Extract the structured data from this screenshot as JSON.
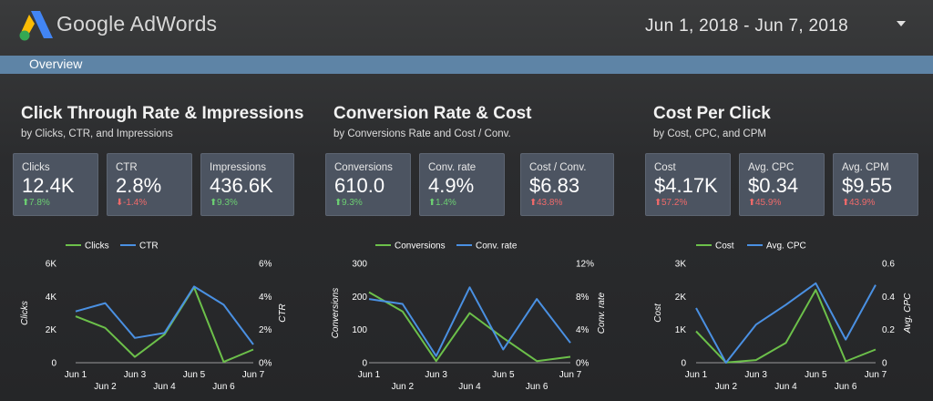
{
  "header": {
    "brand": "Google AdWords",
    "date_range": "Jun 1, 2018 - Jun 7, 2018",
    "colors": {
      "logo_blue": "#4285f4",
      "logo_yellow": "#fbbc05",
      "logo_green": "#34a853"
    }
  },
  "nav": {
    "tab": "Overview",
    "bar_color": "#5e84a6"
  },
  "sections": [
    {
      "title": "Click Through Rate & Impressions",
      "subtitle": "by Clicks, CTR, and Impressions",
      "cards": [
        {
          "label": "Clicks",
          "value": "12.4K",
          "arrow": "⬆",
          "change": "7.8%",
          "trend": "up-g"
        },
        {
          "label": "CTR",
          "value": "2.8%",
          "arrow": "⬇",
          "change": "-1.4%",
          "trend": "dn-r"
        },
        {
          "label": "Impressions",
          "value": "436.6K",
          "arrow": "⬆",
          "change": "9.3%",
          "trend": "up-g"
        }
      ]
    },
    {
      "title": "Conversion Rate & Cost",
      "subtitle": "by Conversions Rate and Cost / Conv.",
      "cards": [
        {
          "label": "Conversions",
          "value": "610.0",
          "arrow": "⬆",
          "change": "9.3%",
          "trend": "up-g"
        },
        {
          "label": "Conv. rate",
          "value": "4.9%",
          "arrow": "⬆",
          "change": "1.4%",
          "trend": "up-g"
        },
        {
          "label": "Cost / Conv.",
          "value": "$6.83",
          "arrow": "⬆",
          "change": "43.8%",
          "trend": "up-r"
        }
      ]
    },
    {
      "title": "Cost Per Click",
      "subtitle": "by Cost, CPC, and CPM",
      "cards": [
        {
          "label": "Cost",
          "value": "$4.17K",
          "arrow": "⬆",
          "change": "57.2%",
          "trend": "up-r"
        },
        {
          "label": "Avg. CPC",
          "value": "$0.34",
          "arrow": "⬆",
          "change": "45.9%",
          "trend": "up-r"
        },
        {
          "label": "Avg. CPM",
          "value": "$9.55",
          "arrow": "⬆",
          "change": "43.9%",
          "trend": "up-r"
        }
      ]
    }
  ],
  "chart_data": [
    {
      "type": "line",
      "x": [
        "Jun 1",
        "Jun 2",
        "Jun 3",
        "Jun 4",
        "Jun 5",
        "Jun 6",
        "Jun 7"
      ],
      "left_axis": {
        "label": "Clicks",
        "ticks": [
          "0",
          "2K",
          "4K",
          "6K"
        ],
        "range": [
          0,
          6000
        ]
      },
      "right_axis": {
        "label": "CTR",
        "ticks": [
          "0%",
          "2%",
          "4%",
          "6%"
        ],
        "range": [
          0,
          6
        ]
      },
      "series": [
        {
          "name": "Clicks",
          "axis": "left",
          "color": "#6cc04a",
          "values": [
            2800,
            2100,
            350,
            1700,
            4550,
            50,
            800
          ]
        },
        {
          "name": "CTR",
          "axis": "right",
          "color": "#4a90e2",
          "values": [
            3.1,
            3.6,
            1.5,
            1.8,
            4.6,
            3.5,
            1.1
          ]
        }
      ]
    },
    {
      "type": "line",
      "x": [
        "Jun 1",
        "Jun 2",
        "Jun 3",
        "Jun 4",
        "Jun 5",
        "Jun 6",
        "Jun 7"
      ],
      "left_axis": {
        "label": "Conversions",
        "ticks": [
          "0",
          "100",
          "200",
          "300"
        ],
        "range": [
          0,
          300
        ]
      },
      "right_axis": {
        "label": "Conv. rate",
        "ticks": [
          "0%",
          "4%",
          "8%",
          "12%"
        ],
        "range": [
          0,
          12
        ]
      },
      "series": [
        {
          "name": "Conversions",
          "axis": "left",
          "color": "#6cc04a",
          "values": [
            213,
            155,
            5,
            150,
            75,
            5,
            18
          ]
        },
        {
          "name": "Conv. rate",
          "axis": "right",
          "color": "#4a90e2",
          "values": [
            7.7,
            7.1,
            0.8,
            9.1,
            1.6,
            7.7,
            2.4
          ]
        }
      ]
    },
    {
      "type": "line",
      "x": [
        "Jun 1",
        "Jun 2",
        "Jun 3",
        "Jun 4",
        "Jun 5",
        "Jun 6",
        "Jun 7"
      ],
      "left_axis": {
        "label": "Cost",
        "ticks": [
          "0",
          "1K",
          "2K",
          "3K"
        ],
        "range": [
          0,
          3000
        ]
      },
      "right_axis": {
        "label": "Avg. CPC",
        "ticks": [
          "0",
          "0.2",
          "0.4",
          "0.6"
        ],
        "range": [
          0,
          0.6
        ]
      },
      "series": [
        {
          "name": "Cost",
          "axis": "left",
          "color": "#6cc04a",
          "values": [
            950,
            5,
            80,
            600,
            2200,
            40,
            400
          ]
        },
        {
          "name": "Avg. CPC",
          "axis": "right",
          "color": "#4a90e2",
          "values": [
            0.33,
            0.0,
            0.23,
            0.35,
            0.48,
            0.14,
            0.47
          ]
        }
      ]
    }
  ]
}
